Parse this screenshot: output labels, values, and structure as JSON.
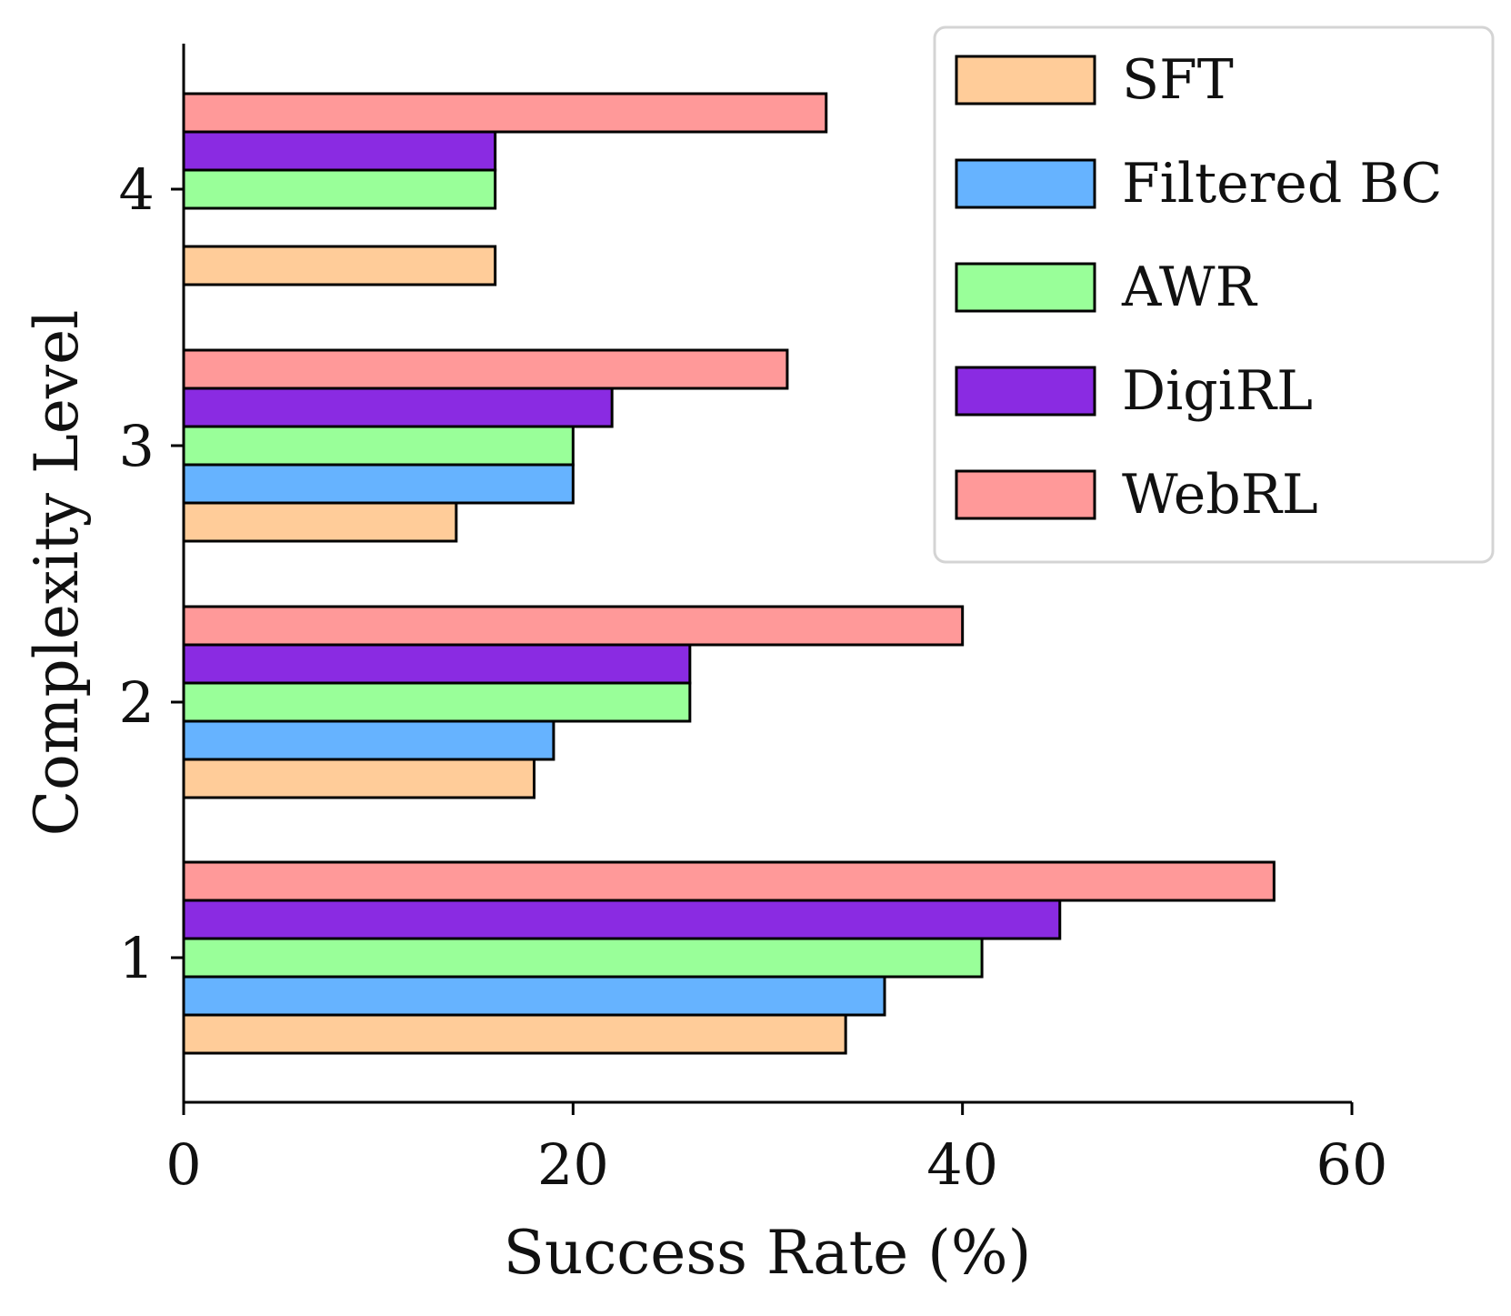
{
  "chart_data": {
    "type": "bar",
    "orientation": "horizontal",
    "categories": [
      "1",
      "2",
      "3",
      "4"
    ],
    "series": [
      {
        "name": "SFT",
        "color": "#FFCC99",
        "values": [
          34,
          18,
          14,
          16
        ]
      },
      {
        "name": "Filtered BC",
        "color": "#66B3FF",
        "values": [
          36,
          19,
          20,
          0
        ]
      },
      {
        "name": "AWR",
        "color": "#99FF99",
        "values": [
          41,
          26,
          20,
          16
        ]
      },
      {
        "name": "DigiRL",
        "color": "#8A2BE2",
        "values": [
          45,
          26,
          22,
          16
        ]
      },
      {
        "name": "WebRL",
        "color": "#FF9999",
        "values": [
          56,
          40,
          31,
          33
        ]
      }
    ],
    "xlabel": "Success Rate (%)",
    "ylabel": "Complexity Level",
    "xlim": [
      0,
      60
    ],
    "xticks": [
      "0",
      "20",
      "40",
      "60"
    ],
    "grid": false,
    "legend_position": "top-right",
    "edge_color": "#000000"
  }
}
